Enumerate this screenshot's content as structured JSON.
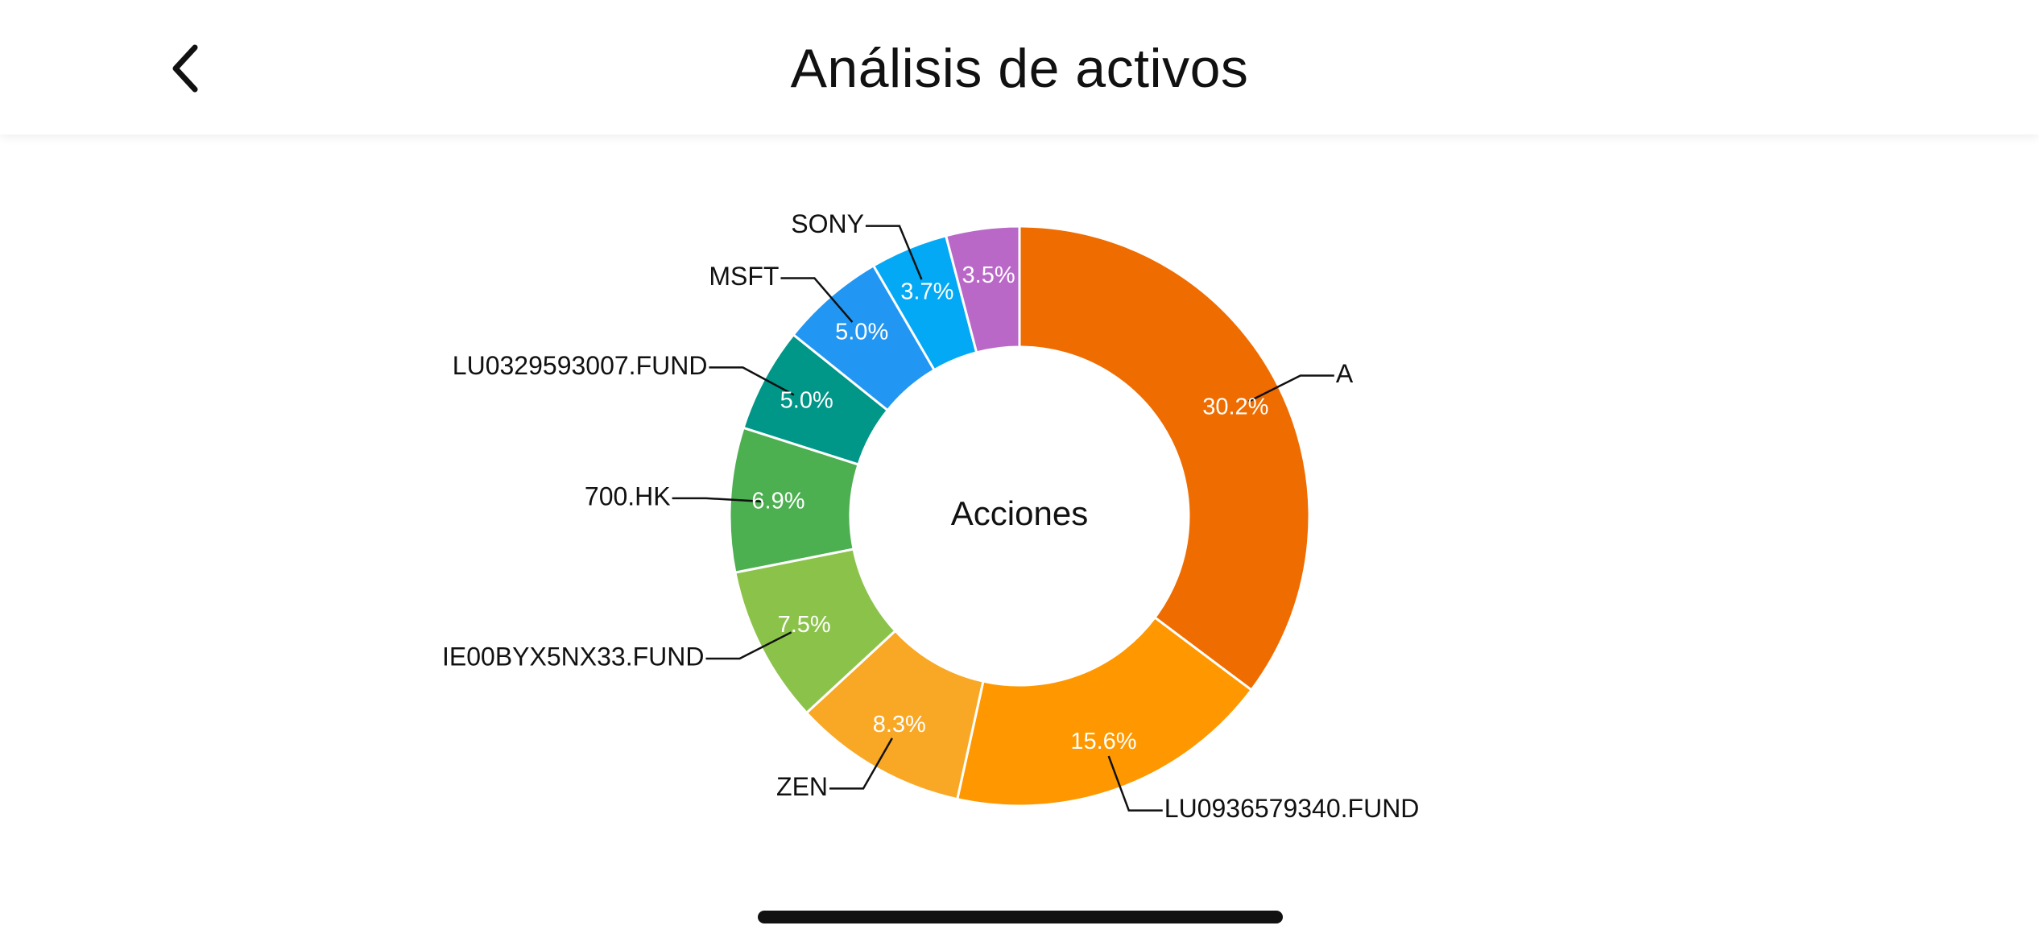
{
  "header": {
    "title": "Análisis de activos",
    "back_icon": "chevron-left-icon"
  },
  "chart_data": {
    "type": "pie",
    "center_label": "Acciones",
    "slices": [
      {
        "label": "A",
        "value": 30.2,
        "value_text": "30.2%",
        "color": "#EF6C00"
      },
      {
        "label": "LU0936579340.FUND",
        "value": 15.6,
        "value_text": "15.6%",
        "color": "#FF9800"
      },
      {
        "label": "ZEN",
        "value": 8.3,
        "value_text": "8.3%",
        "color": "#F9A825"
      },
      {
        "label": "IE00BYX5NX33.FUND",
        "value": 7.5,
        "value_text": "7.5%",
        "color": "#8BC34A"
      },
      {
        "label": "700.HK",
        "value": 6.9,
        "value_text": "6.9%",
        "color": "#4CAF50"
      },
      {
        "label": "LU0329593007.FUND",
        "value": 5.0,
        "value_text": "5.0%",
        "color": "#009688"
      },
      {
        "label": "MSFT",
        "value": 5.0,
        "value_text": "5.0%",
        "color": "#2196F3"
      },
      {
        "label": "SONY",
        "value": 3.7,
        "value_text": "3.7%",
        "color": "#03A9F4"
      },
      {
        "label": "",
        "value": 3.5,
        "value_text": "3.5%",
        "color": "#BA68C8"
      }
    ]
  }
}
